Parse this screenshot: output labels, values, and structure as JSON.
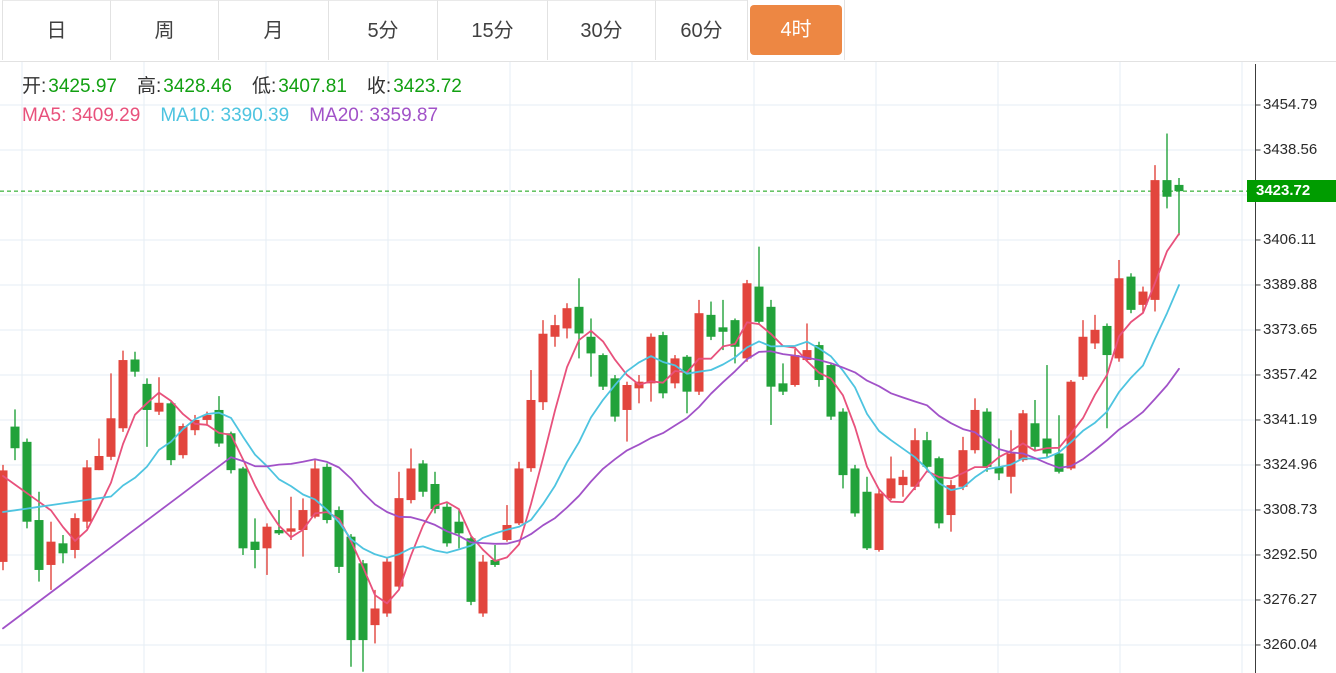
{
  "tabs": [
    {
      "label": "日",
      "active": false
    },
    {
      "label": "周",
      "active": false
    },
    {
      "label": "月",
      "active": false
    },
    {
      "label": "5分",
      "active": false
    },
    {
      "label": "15分",
      "active": false
    },
    {
      "label": "30分",
      "active": false
    },
    {
      "label": "60分",
      "active": false
    },
    {
      "label": "4时",
      "active": true
    }
  ],
  "tab_active_color": "#ED8743",
  "legend": {
    "ohlc": [
      {
        "label": "开:",
        "value": "3425.97"
      },
      {
        "label": "高:",
        "value": "3428.46"
      },
      {
        "label": "低:",
        "value": "3407.81"
      },
      {
        "label": "收:",
        "value": "3423.72"
      }
    ],
    "ohlc_value_color": "#12A012",
    "ma": [
      {
        "label": "MA5:",
        "value": "3409.29",
        "color": "#E8517C"
      },
      {
        "label": "MA10:",
        "value": "3390.39",
        "color": "#4EC4E0"
      },
      {
        "label": "MA20:",
        "value": "3359.87",
        "color": "#A152C8"
      }
    ]
  },
  "axis": {
    "tick_labels": [
      "3454.79",
      "3438.56",
      "3406.11",
      "3389.88",
      "3373.65",
      "3357.42",
      "3341.19",
      "3324.96",
      "3308.73",
      "3292.50",
      "3276.27",
      "3260.04"
    ],
    "hidden_gridline_price": 3422.33
  },
  "price_tag": {
    "label": "3423.72",
    "bg": "#009C00"
  },
  "chart_data": {
    "type": "candlestick",
    "y_ticks": [
      3454.79,
      3438.56,
      3422.33,
      3406.11,
      3389.88,
      3373.65,
      3357.42,
      3341.19,
      3324.96,
      3308.73,
      3292.5,
      3276.27,
      3260.04
    ],
    "y_tick_interval": 16.23,
    "current_price": 3423.72,
    "current_price_line_color": "#0CA00C",
    "up_color": "#E2453D",
    "down_color": "#22A23A",
    "grid_color": "#E6EDF4",
    "axis_line_color": "#3C3C3C",
    "ohlc": [
      [
        3290.0,
        3325.0,
        3287.0,
        3323.0
      ],
      [
        3338.8,
        3345.0,
        3326.7,
        3331.0
      ],
      [
        3333.3,
        3334.5,
        3302.1,
        3304.5
      ],
      [
        3305.1,
        3315.3,
        3282.9,
        3287.1
      ],
      [
        3288.9,
        3304.5,
        3279.9,
        3297.3
      ],
      [
        3296.7,
        3299.7,
        3289.5,
        3293.1
      ],
      [
        3294.3,
        3307.5,
        3291.3,
        3305.8
      ],
      [
        3304.5,
        3326.7,
        3302.1,
        3324.1
      ],
      [
        3323.1,
        3334.5,
        3323.1,
        3328.2
      ],
      [
        3327.9,
        3358.0,
        3326.7,
        3341.8
      ],
      [
        3338.2,
        3366.2,
        3336.9,
        3362.8
      ],
      [
        3363.0,
        3365.8,
        3356.8,
        3358.6
      ],
      [
        3354.2,
        3356.2,
        3331.5,
        3344.8
      ],
      [
        3344.2,
        3356.6,
        3343.0,
        3347.4
      ],
      [
        3347.2,
        3347.8,
        3324.9,
        3326.7
      ],
      [
        3328.5,
        3339.9,
        3327.3,
        3339.0
      ],
      [
        3337.5,
        3343.0,
        3335.7,
        3341.2
      ],
      [
        3341.2,
        3344.2,
        3339.1,
        3343.0
      ],
      [
        3344.8,
        3349.8,
        3331.5,
        3332.7
      ],
      [
        3336.4,
        3337.0,
        3321.9,
        3323.1
      ],
      [
        3323.7,
        3324.3,
        3292.5,
        3294.9
      ],
      [
        3297.3,
        3305.7,
        3287.7,
        3294.3
      ],
      [
        3294.9,
        3303.9,
        3285.3,
        3302.7
      ],
      [
        3301.5,
        3308.7,
        3299.7,
        3300.3
      ],
      [
        3300.9,
        3313.5,
        3297.9,
        3302.1
      ],
      [
        3301.5,
        3312.9,
        3291.9,
        3308.7
      ],
      [
        3306.3,
        3326.7,
        3305.7,
        3323.7
      ],
      [
        3324.3,
        3325.5,
        3303.9,
        3305.1
      ],
      [
        3308.7,
        3310.0,
        3286.0,
        3288.2
      ],
      [
        3299.1,
        3300.0,
        3252.2,
        3261.8
      ],
      [
        3289.5,
        3290.7,
        3250.4,
        3261.8
      ],
      [
        3267.2,
        3279.9,
        3260.6,
        3273.2
      ],
      [
        3271.4,
        3291.3,
        3270.2,
        3290.1
      ],
      [
        3281.1,
        3322.5,
        3279.9,
        3313.0
      ],
      [
        3312.3,
        3330.9,
        3311.1,
        3323.7
      ],
      [
        3325.5,
        3326.7,
        3313.5,
        3315.3
      ],
      [
        3318.1,
        3322.5,
        3307.5,
        3309.1
      ],
      [
        3309.9,
        3311.1,
        3295.5,
        3296.7
      ],
      [
        3304.5,
        3308.7,
        3294.9,
        3300.3
      ],
      [
        3298.5,
        3299.1,
        3274.4,
        3275.6
      ],
      [
        3271.4,
        3292.5,
        3270.2,
        3290.1
      ],
      [
        3290.7,
        3296.1,
        3288.2,
        3288.9
      ],
      [
        3297.9,
        3310.5,
        3297.3,
        3303.3
      ],
      [
        3303.9,
        3326.1,
        3303.3,
        3323.7
      ],
      [
        3323.8,
        3359.2,
        3322.5,
        3348.4
      ],
      [
        3347.6,
        3377.2,
        3344.8,
        3372.3
      ],
      [
        3371.2,
        3379.1,
        3367.6,
        3375.4
      ],
      [
        3374.2,
        3383.3,
        3370.6,
        3381.5
      ],
      [
        3382.0,
        3392.3,
        3363.4,
        3372.4
      ],
      [
        3371.2,
        3377.8,
        3356.8,
        3365.2
      ],
      [
        3364.6,
        3365.2,
        3352.0,
        3353.2
      ],
      [
        3356.2,
        3357.4,
        3340.6,
        3342.4
      ],
      [
        3344.8,
        3355.0,
        3333.4,
        3353.8
      ],
      [
        3352.6,
        3357.4,
        3347.2,
        3355.0
      ],
      [
        3354.4,
        3372.4,
        3347.8,
        3371.2
      ],
      [
        3371.8,
        3373.0,
        3349.0,
        3350.8
      ],
      [
        3354.4,
        3364.6,
        3352.6,
        3363.4
      ],
      [
        3364.0,
        3364.6,
        3343.6,
        3351.4
      ],
      [
        3351.4,
        3384.5,
        3350.2,
        3379.7
      ],
      [
        3379.1,
        3383.9,
        3370.0,
        3371.2
      ],
      [
        3374.6,
        3384.5,
        3366.4,
        3373.0
      ],
      [
        3377.2,
        3377.8,
        3361.6,
        3367.6
      ],
      [
        3363.4,
        3391.7,
        3362.2,
        3390.5
      ],
      [
        3389.3,
        3403.7,
        3376.0,
        3376.6
      ],
      [
        3382.0,
        3384.5,
        3339.4,
        3353.2
      ],
      [
        3354.4,
        3361.6,
        3350.2,
        3351.4
      ],
      [
        3353.8,
        3366.8,
        3353.2,
        3364.6
      ],
      [
        3362.8,
        3376.0,
        3362.2,
        3366.4
      ],
      [
        3368.2,
        3369.4,
        3353.2,
        3355.6
      ],
      [
        3361.0,
        3361.6,
        3341.2,
        3342.4
      ],
      [
        3344.2,
        3345.4,
        3316.5,
        3321.3
      ],
      [
        3323.7,
        3325.0,
        3306.3,
        3307.5
      ],
      [
        3315.3,
        3320.7,
        3294.3,
        3294.9
      ],
      [
        3294.3,
        3315.9,
        3293.7,
        3314.7
      ],
      [
        3312.9,
        3328.0,
        3312.3,
        3320.1
      ],
      [
        3317.7,
        3323.1,
        3313.5,
        3320.7
      ],
      [
        3317.1,
        3338.2,
        3315.9,
        3333.9
      ],
      [
        3333.9,
        3336.9,
        3323.1,
        3324.3
      ],
      [
        3327.4,
        3328.0,
        3302.1,
        3303.9
      ],
      [
        3306.9,
        3319.5,
        3300.9,
        3317.7
      ],
      [
        3317.1,
        3335.1,
        3315.9,
        3330.3
      ],
      [
        3330.3,
        3349.0,
        3329.1,
        3344.8
      ],
      [
        3344.2,
        3345.4,
        3322.5,
        3324.3
      ],
      [
        3324.3,
        3334.5,
        3319.5,
        3321.9
      ],
      [
        3320.7,
        3337.5,
        3314.7,
        3329.1
      ],
      [
        3326.7,
        3344.8,
        3326.1,
        3343.6
      ],
      [
        3340.0,
        3348.4,
        3330.3,
        3331.5
      ],
      [
        3334.5,
        3361.0,
        3327.9,
        3329.1
      ],
      [
        3329.1,
        3342.9,
        3321.9,
        3322.5
      ],
      [
        3323.7,
        3355.6,
        3323.1,
        3355.0
      ],
      [
        3356.8,
        3377.2,
        3355.6,
        3371.2
      ],
      [
        3368.8,
        3379.1,
        3366.8,
        3373.7
      ],
      [
        3375.1,
        3376.0,
        3338.2,
        3364.6
      ],
      [
        3363.4,
        3398.9,
        3362.2,
        3392.3
      ],
      [
        3392.9,
        3394.1,
        3379.7,
        3380.9
      ],
      [
        3382.7,
        3389.3,
        3379.7,
        3387.5
      ],
      [
        3384.5,
        3433.1,
        3380.3,
        3427.7
      ],
      [
        3427.7,
        3444.5,
        3417.5,
        3421.7
      ],
      [
        3425.97,
        3428.46,
        3407.81,
        3423.72
      ]
    ],
    "moving_averages": [
      {
        "name": "MA5",
        "window": 5,
        "color": "#E8517C",
        "start_value": 3321,
        "end_value": 3409.29
      },
      {
        "name": "MA10",
        "window": 10,
        "color": "#4EC4E0",
        "start_value": 3308,
        "end_value": 3390.39
      },
      {
        "name": "MA20",
        "window": 20,
        "color": "#A152C8",
        "start_value": 3266,
        "end_value": 3359.87
      }
    ]
  }
}
